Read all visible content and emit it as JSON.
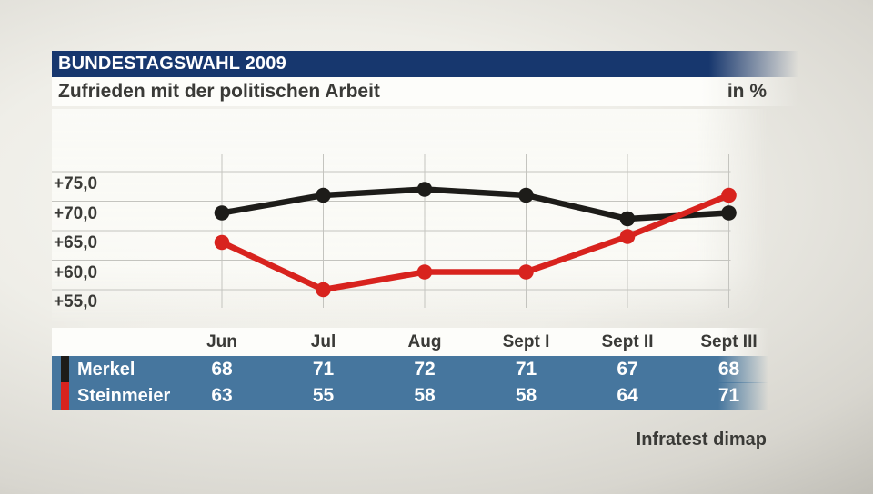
{
  "page": {
    "title": "BUNDESTAGSWAHL 2009",
    "subtitle": "Zufrieden mit der politischen Arbeit",
    "unit_label": "in %",
    "source": "Infratest dimap"
  },
  "colors": {
    "header_bar": "#17376e",
    "subtitle_bg": "#fdfdfa",
    "table_row_bg": "#46769e",
    "merkel": "#1d1c19",
    "steinmeier": "#d8231e",
    "grid": "#c4c4bf",
    "text_dark": "#3a3a37",
    "text_light": "#ffffff"
  },
  "chart_data": {
    "type": "line",
    "title": "Zufrieden mit der politischen Arbeit",
    "unit": "%",
    "categories": [
      "Jun",
      "Jul",
      "Aug",
      "Sept I",
      "Sept II",
      "Sept III"
    ],
    "series": [
      {
        "name": "Merkel",
        "color": "#1d1c19",
        "values": [
          68,
          71,
          72,
          71,
          67,
          68
        ]
      },
      {
        "name": "Steinmeier",
        "color": "#d8231e",
        "values": [
          63,
          55,
          58,
          58,
          64,
          71
        ]
      }
    ],
    "y_ticks": [
      {
        "label": "+75,0",
        "value": 75
      },
      {
        "label": "+70,0",
        "value": 70
      },
      {
        "label": "+65,0",
        "value": 65
      },
      {
        "label": "+60,0",
        "value": 60
      },
      {
        "label": "+55,0",
        "value": 55
      }
    ],
    "ylim": [
      55,
      75
    ],
    "grid": true,
    "legend_position": "table-rows-left",
    "source": "Infratest dimap"
  }
}
